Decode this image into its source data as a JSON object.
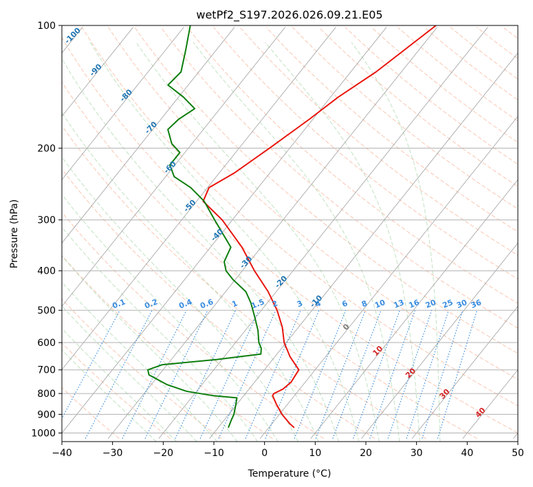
{
  "chart_data": {
    "type": "line",
    "subtype": "skew-t log-p diagram",
    "title": "wetPf2_S197.2026.026.09.21.E05",
    "xlabel": "Temperature (°C)",
    "ylabel": "Pressure (hPa)",
    "xlim": [
      -40,
      50
    ],
    "ylim": [
      1050,
      100
    ],
    "y_scale": "log",
    "grid": true,
    "x_ticks": [
      -40,
      -30,
      -20,
      -10,
      0,
      10,
      20,
      30,
      40,
      50
    ],
    "y_ticks": [
      100,
      200,
      300,
      400,
      500,
      600,
      700,
      800,
      900,
      1000
    ],
    "colors": {
      "temperature": "#e8140c",
      "dewpoint": "#0c7d0c",
      "dry_adiabat": "#f5a07e",
      "moist_adiabat": "#9fd39f",
      "mixing_ratio": "#3a8de0",
      "isotherm": "#9a9a9a",
      "isotherm_label_blue": "#2277b4",
      "isotherm_label_red": "#d62728"
    },
    "series": [
      {
        "key": "temperature",
        "p": [
          970,
          950,
          900,
          850,
          810,
          800,
          780,
          750,
          700,
          650,
          600,
          550,
          500,
          450,
          400,
          350,
          300,
          270,
          250,
          230,
          200,
          170,
          150,
          130,
          100
        ],
        "t": [
          5,
          3.6,
          0.5,
          -2.2,
          -4.3,
          -4.4,
          -3.3,
          -2.8,
          -3.2,
          -7,
          -10.4,
          -13.2,
          -16.9,
          -21.6,
          -27.6,
          -33.8,
          -42,
          -48.7,
          -49.7,
          -47,
          -44,
          -40.7,
          -38.5,
          -35,
          -30.5
        ]
      },
      {
        "key": "dewpoint",
        "p": [
          970,
          930,
          900,
          850,
          820,
          810,
          790,
          760,
          720,
          700,
          680,
          660,
          640,
          620,
          600,
          560,
          520,
          480,
          450,
          420,
          400,
          380,
          350,
          300,
          270,
          250,
          235,
          220,
          205,
          195,
          180,
          170,
          160,
          150,
          140,
          130,
          115,
          100
        ],
        "t": [
          -8,
          -8.6,
          -9,
          -10.2,
          -11,
          -16,
          -22,
          -27,
          -32,
          -33,
          -31,
          -21,
          -13.2,
          -14,
          -15.4,
          -17.5,
          -20.2,
          -23.2,
          -26,
          -30.5,
          -33.2,
          -35,
          -36,
          -43.5,
          -48.5,
          -53.3,
          -58.3,
          -61,
          -61,
          -64,
          -67,
          -66.5,
          -65,
          -69,
          -74,
          -73.5,
          -76,
          -79
        ]
      }
    ],
    "isotherm_labels_high": [
      "-100",
      "-90",
      "-80",
      "-70",
      "-60",
      "-50",
      "-40",
      "-30",
      "-20",
      "-10"
    ],
    "isotherm_labels_low": [
      "0",
      "10",
      "20",
      "30",
      "40"
    ],
    "mixing_ratio_labels": [
      "0.1",
      "0.2",
      "0.4",
      "0.6",
      "1",
      "1.5",
      "2",
      "3",
      "4",
      "6",
      "8",
      "10",
      "13",
      "16",
      "20",
      "25",
      "30",
      "36"
    ]
  }
}
